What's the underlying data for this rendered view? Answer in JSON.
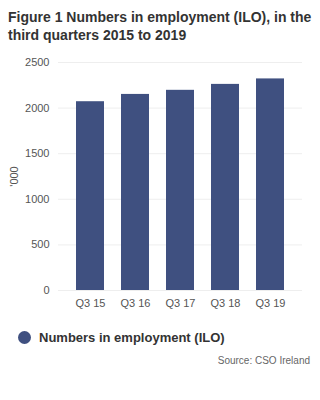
{
  "chart_data": {
    "type": "bar",
    "title": "Figure 1 Numbers in employment (ILO), in the third quarters 2015 to 2019",
    "categories": [
      "Q3 15",
      "Q3 16",
      "Q3 17",
      "Q3 18",
      "Q3 19"
    ],
    "series": [
      {
        "name": "Numbers in employment (ILO)",
        "color": "#3f5080",
        "values": [
          2070,
          2150,
          2195,
          2260,
          2320
        ]
      }
    ],
    "ylabel": "'000",
    "ylim": [
      0,
      2500
    ],
    "yticks": [
      0,
      500,
      1000,
      1500,
      2000,
      2500
    ],
    "grid": true,
    "legend": "bottom",
    "source": "Source: CSO Ireland"
  }
}
